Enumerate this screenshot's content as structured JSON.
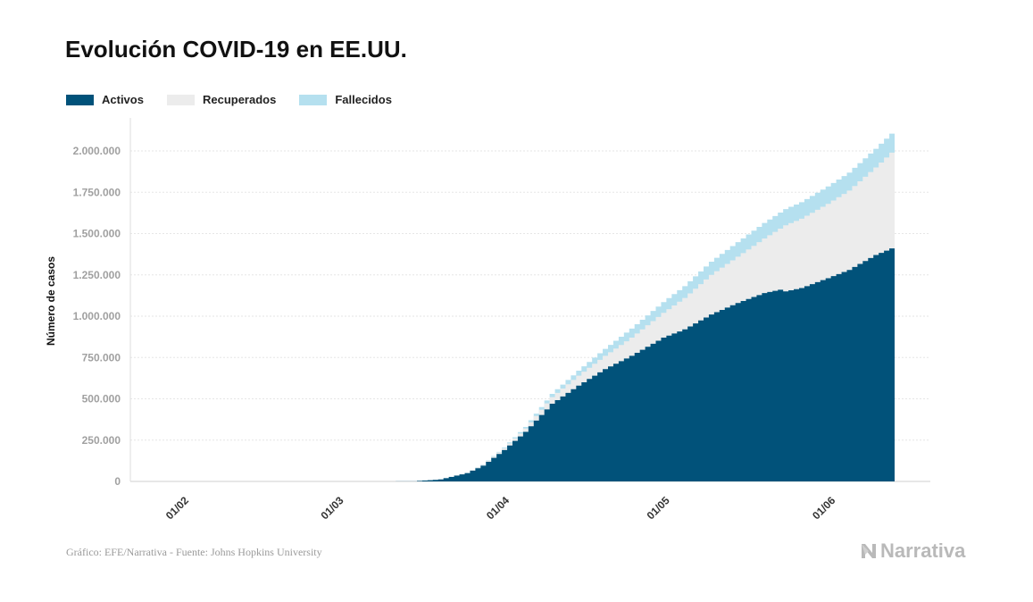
{
  "chart_data": {
    "type": "area",
    "title": "Evolución COVID-19 en EE.UU.",
    "ylabel": "Número de casos",
    "ylim": [
      0,
      2200000
    ],
    "y_ticks": [
      0,
      250000,
      500000,
      750000,
      1000000,
      1250000,
      1500000,
      1750000,
      2000000
    ],
    "y_tick_labels": [
      "0",
      "250.000",
      "500.000",
      "750.000",
      "1.000.000",
      "1.250.000",
      "1.500.000",
      "1.750.000",
      "2.000.000"
    ],
    "x_range": [
      "2020-01-22",
      "2020-06-13"
    ],
    "x_ticks": [
      "2020-02-01",
      "2020-03-01",
      "2020-04-01",
      "2020-05-01",
      "2020-06-01"
    ],
    "x_tick_labels": [
      "01/02",
      "01/03",
      "01/04",
      "01/05",
      "01/06"
    ],
    "stacked": true,
    "step": true,
    "grid": true,
    "legend_position": "top-left",
    "x": [
      "2020-01-22",
      "2020-03-01",
      "2020-03-10",
      "2020-03-15",
      "2020-03-20",
      "2020-03-25",
      "2020-03-28",
      "2020-04-01",
      "2020-04-05",
      "2020-04-10",
      "2020-04-15",
      "2020-04-20",
      "2020-04-25",
      "2020-05-01",
      "2020-05-05",
      "2020-05-10",
      "2020-05-15",
      "2020-05-20",
      "2020-05-23",
      "2020-05-24",
      "2020-05-27",
      "2020-06-01",
      "2020-06-05",
      "2020-06-10",
      "2020-06-13"
    ],
    "series": [
      {
        "name": "Activos",
        "color": "#01527a",
        "values": [
          0,
          0,
          0,
          1000,
          12000,
          50000,
          95000,
          190000,
          300000,
          470000,
          580000,
          680000,
          760000,
          870000,
          920000,
          1010000,
          1080000,
          1140000,
          1160000,
          1150000,
          1170000,
          1230000,
          1280000,
          1370000,
          1410000
        ]
      },
      {
        "name": "Recuperados",
        "color": "#ececec",
        "values": [
          0,
          0,
          0,
          0,
          1000,
          3000,
          5000,
          10000,
          20000,
          40000,
          60000,
          80000,
          110000,
          150000,
          190000,
          240000,
          280000,
          330000,
          370000,
          400000,
          420000,
          450000,
          480000,
          530000,
          580000
        ]
      },
      {
        "name": "Fallecidos",
        "color": "#b5e0ef",
        "values": [
          0,
          0,
          0,
          0,
          300,
          1000,
          2000,
          5000,
          10000,
          20000,
          30000,
          42000,
          55000,
          65000,
          72000,
          80000,
          88000,
          94000,
          97000,
          98000,
          100000,
          105000,
          109000,
          113000,
          115000
        ]
      }
    ]
  },
  "footer": {
    "source": "Gráfico: EFE/Narrativa - Fuente: Johns Hopkins University",
    "brand": "Narrativa"
  },
  "brand_icon": "narrativa-logo-icon"
}
